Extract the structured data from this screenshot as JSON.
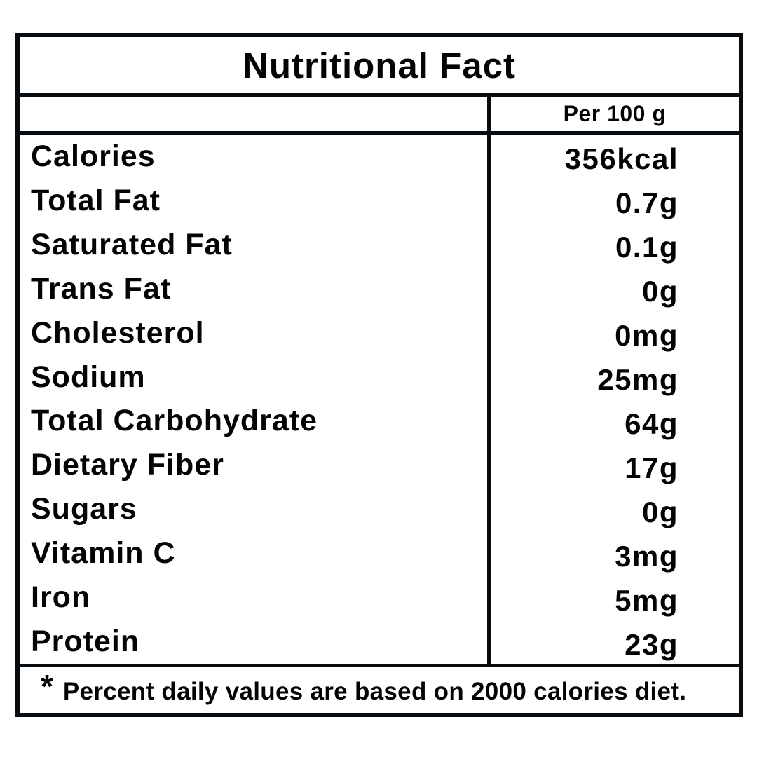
{
  "table": {
    "title": "Nutritional Fact",
    "column_header": "Per 100 g",
    "rows": [
      {
        "label": "Calories",
        "value": "356kcal"
      },
      {
        "label": "Total Fat",
        "value": "0.7g"
      },
      {
        "label": "Saturated Fat",
        "value": "0.1g"
      },
      {
        "label": "Trans Fat",
        "value": "0g"
      },
      {
        "label": "Cholesterol",
        "value": "0mg"
      },
      {
        "label": "Sodium",
        "value": "25mg"
      },
      {
        "label": "Total Carbohydrate",
        "value": "64g"
      },
      {
        "label": "Dietary Fiber",
        "value": "17g"
      },
      {
        "label": "Sugars",
        "value": "0g"
      },
      {
        "label": "Vitamin C",
        "value": "3mg"
      },
      {
        "label": "Iron",
        "value": "5mg"
      },
      {
        "label": "Protein",
        "value": "23g"
      }
    ],
    "footnote_marker": "*",
    "footnote": "Percent daily values are based on 2000 calories diet.",
    "colors": {
      "border": "#070c11",
      "text": "#030405",
      "background": "#ffffff"
    }
  }
}
